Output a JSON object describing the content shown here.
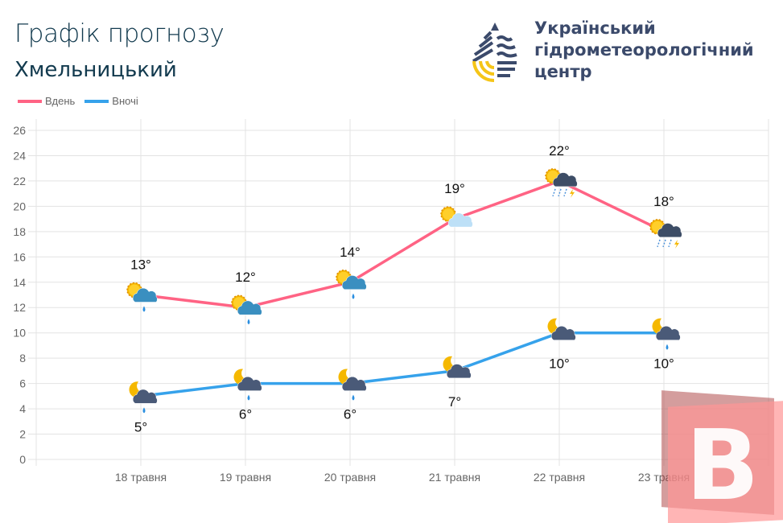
{
  "header": {
    "title": "Графік прогнозу",
    "city": "Хмельницький"
  },
  "logo": {
    "org_lines": [
      "Український",
      "гідрометеорологічний",
      "центр"
    ]
  },
  "watermark": {
    "letter": "B"
  },
  "chart_data": {
    "type": "line",
    "categories": [
      "18 травня",
      "19 травня",
      "20 травня",
      "21 травня",
      "22 травня",
      "23 травня"
    ],
    "ylim": [
      0,
      26
    ],
    "yticks": [
      0,
      2,
      4,
      6,
      8,
      10,
      12,
      14,
      16,
      18,
      20,
      22,
      24,
      26
    ],
    "grid": true,
    "legend": "top-left",
    "series": [
      {
        "name": "Вдень",
        "color": "#ff6384",
        "values": [
          13,
          12,
          14,
          19,
          22,
          18
        ],
        "labels": [
          "13°",
          "12°",
          "14°",
          "19°",
          "22°",
          "18°"
        ],
        "icons": [
          "sun-cloud-rain-icon",
          "sun-cloud-rain-icon",
          "sun-cloud-rain-icon",
          "sun-cloud-icon",
          "sun-storm-icon",
          "sun-storm-icon"
        ]
      },
      {
        "name": "Вночі",
        "color": "#36a2eb",
        "values": [
          5,
          6,
          6,
          7,
          10,
          10
        ],
        "labels": [
          "5°",
          "6°",
          "6°",
          "7°",
          "10°",
          "10°"
        ],
        "icons": [
          "moon-cloud-rain-icon",
          "moon-cloud-rain-icon",
          "moon-cloud-rain-icon",
          "moon-cloud-icon",
          "moon-cloud-icon",
          "moon-cloud-rain-icon"
        ]
      }
    ]
  }
}
